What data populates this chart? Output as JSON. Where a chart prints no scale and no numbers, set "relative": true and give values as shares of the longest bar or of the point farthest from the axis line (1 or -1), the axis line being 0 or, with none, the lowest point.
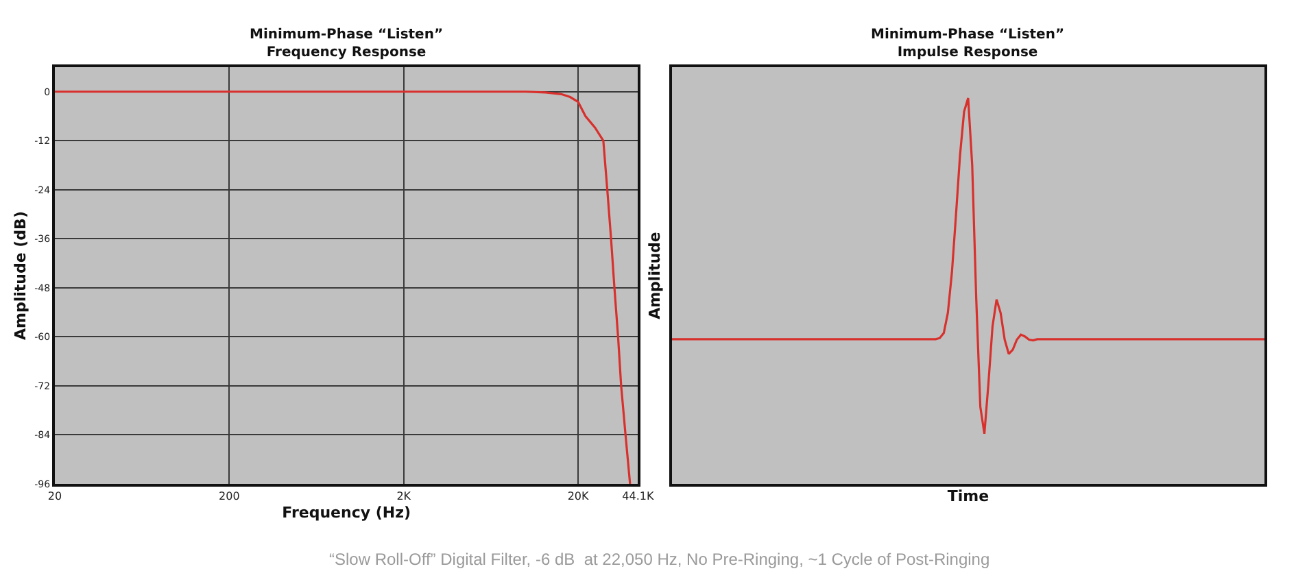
{
  "chart_data": [
    {
      "type": "line",
      "title": "Minimum-Phase “Listen”\nFrequency Response",
      "xlabel": "Frequency (Hz)",
      "ylabel": "Amplitude (dB)",
      "x": [
        20,
        200,
        2000,
        10000,
        13000,
        16000,
        18000,
        20000,
        22050,
        25000,
        27900,
        29400,
        30900,
        32300,
        33900,
        35300,
        37400,
        39700
      ],
      "series": [
        {
          "color": "#d8302c",
          "values": [
            0,
            0,
            0,
            0,
            -0.2,
            -0.6,
            -1.3,
            -2.5,
            -6,
            -8.8,
            -12,
            -24,
            -36,
            -48,
            -60,
            -72,
            -84,
            -96
          ]
        }
      ],
      "log": "x",
      "xlim": [
        20,
        44100
      ],
      "xticks": [
        20,
        200,
        {
          "value": 2000,
          "label": "2K"
        },
        {
          "value": 20000,
          "label": "20K"
        },
        {
          "value": 44100,
          "label": "44.1K"
        }
      ],
      "ylim": [
        -96,
        6
      ],
      "yticks": [
        0,
        -12,
        -24,
        -36,
        -48,
        -60,
        -72,
        -84,
        -96
      ],
      "grid": true,
      "annotations": [
        "“Slow Roll-Off” Digital Filter, -6 dB  at 22,050 Hz, No Pre-Ringing, ~1 Cycle of Post-Ringing"
      ]
    },
    {
      "type": "line",
      "title": "Minimum-Phase “Listen”\nImpulse Response",
      "xlabel": "Time",
      "ylabel": "Amplitude",
      "relative": true,
      "tick_labels": false,
      "grid": false,
      "categories": [
        null,
        null,
        null,
        null,
        null,
        null,
        null,
        null,
        null,
        null,
        null,
        null,
        null,
        null,
        null,
        null,
        null,
        null,
        null,
        null,
        null,
        null,
        null,
        null,
        null,
        null,
        null,
        null,
        null,
        null,
        null,
        null,
        null,
        null,
        null,
        null,
        null,
        null,
        null,
        null,
        null,
        null,
        null,
        null,
        null,
        null,
        null,
        null,
        null,
        null,
        null,
        null,
        null,
        null,
        null,
        null,
        null,
        null,
        null,
        null,
        null,
        null,
        null,
        null,
        null,
        null,
        null,
        null,
        null,
        null,
        null,
        null,
        null,
        null,
        null,
        null,
        null,
        null,
        null,
        null,
        null,
        null,
        null,
        null,
        null,
        null,
        null,
        null,
        null,
        null,
        null,
        null,
        null,
        null,
        null,
        null,
        null,
        null,
        null,
        null,
        null,
        null,
        null,
        null,
        null,
        null,
        null,
        null,
        null,
        null,
        null,
        null,
        null,
        null,
        null,
        null,
        null,
        null,
        null,
        null,
        null,
        null,
        null,
        null,
        null,
        null,
        null,
        null,
        null,
        null,
        null,
        null,
        null,
        null,
        null,
        null,
        null,
        null,
        null,
        null,
        null,
        null,
        null,
        null,
        null,
        null,
        null
      ],
      "series": [
        {
          "color": "#d8302c",
          "values": [
            0.375,
            0.375,
            0.375,
            0.375,
            0.375,
            0.375,
            0.375,
            0.375,
            0.375,
            0.375,
            0.375,
            0.375,
            0.375,
            0.375,
            0.375,
            0.375,
            0.375,
            0.375,
            0.375,
            0.375,
            0.375,
            0.375,
            0.375,
            0.375,
            0.375,
            0.375,
            0.375,
            0.375,
            0.375,
            0.375,
            0.375,
            0.375,
            0.375,
            0.375,
            0.375,
            0.375,
            0.375,
            0.375,
            0.375,
            0.375,
            0.375,
            0.375,
            0.375,
            0.375,
            0.375,
            0.375,
            0.375,
            0.375,
            0.375,
            0.375,
            0.375,
            0.375,
            0.375,
            0.375,
            0.375,
            0.375,
            0.375,
            0.375,
            0.375,
            0.375,
            0.375,
            0.375,
            0.375,
            0.375,
            0.375,
            0.375,
            0.378,
            0.391,
            0.443,
            0.548,
            0.696,
            0.852,
            0.965,
            1.0,
            0.826,
            0.478,
            0.2,
            0.13,
            0.261,
            0.408,
            0.478,
            0.443,
            0.374,
            0.337,
            0.348,
            0.374,
            0.387,
            0.382,
            0.374,
            0.372,
            0.375,
            0.375,
            0.375,
            0.375,
            0.375,
            0.375,
            0.375,
            0.375,
            0.375,
            0.375,
            0.375,
            0.375,
            0.375,
            0.375,
            0.375,
            0.375,
            0.375,
            0.375,
            0.375,
            0.375,
            0.375,
            0.375,
            0.375,
            0.375,
            0.375,
            0.375,
            0.375,
            0.375,
            0.375,
            0.375,
            0.375,
            0.375,
            0.375,
            0.375,
            0.375,
            0.375,
            0.375,
            0.375,
            0.375,
            0.375,
            0.375,
            0.375,
            0.375,
            0.375,
            0.375,
            0.375,
            0.375,
            0.375,
            0.375,
            0.375,
            0.375,
            0.375,
            0.375,
            0.375,
            0.375,
            0.375,
            0.375
          ]
        }
      ]
    }
  ]
}
